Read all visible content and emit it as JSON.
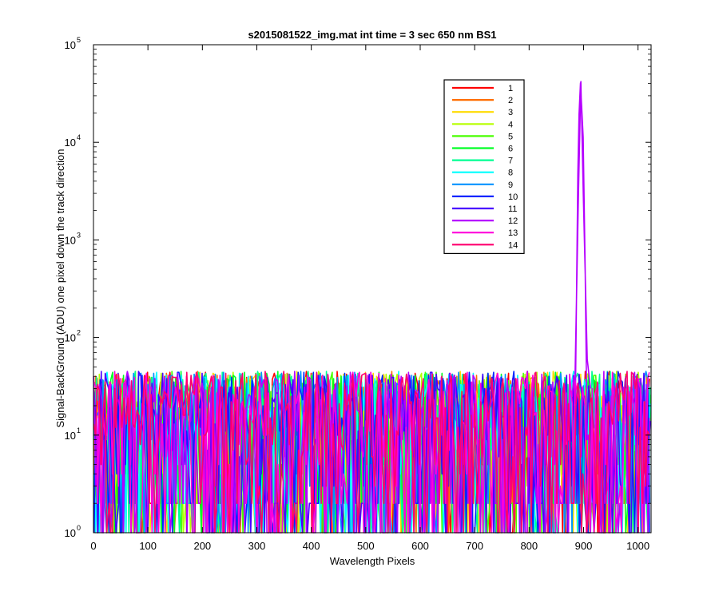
{
  "chart_data": {
    "type": "line",
    "title": "s2015081522_img.mat int time = 3 sec  650 nm BS1",
    "xlabel": "Wavelength Pixels",
    "ylabel": "Signal-BackGround (ADU) one pixel down the track direction",
    "xlim": [
      0,
      1024
    ],
    "ylim": [
      1,
      100000
    ],
    "yscale": "log",
    "grid": false,
    "legend_position": "top-right",
    "x_ticks": [
      0,
      100,
      200,
      300,
      400,
      500,
      600,
      700,
      800,
      900,
      1000
    ],
    "x_tick_labels": [
      "0",
      "100",
      "200",
      "300",
      "400",
      "500",
      "600",
      "700",
      "800",
      "900",
      "1000"
    ],
    "y_ticks": [
      1,
      10,
      100,
      1000,
      10000,
      100000
    ],
    "y_tick_bases": [
      "10",
      "10",
      "10",
      "10",
      "10",
      "10"
    ],
    "y_tick_exps": [
      "0",
      "1",
      "2",
      "3",
      "4",
      "5"
    ],
    "noise_floor": {
      "typical_min": 1,
      "typical_max": 45,
      "median": 10
    },
    "peak": {
      "series": "12",
      "x": 895,
      "y": 42000
    },
    "series": [
      {
        "name": "1",
        "color": "#ff0000"
      },
      {
        "name": "2",
        "color": "#ff6e00"
      },
      {
        "name": "3",
        "color": "#ffdb00"
      },
      {
        "name": "4",
        "color": "#b6ff00"
      },
      {
        "name": "5",
        "color": "#49ff00"
      },
      {
        "name": "6",
        "color": "#00ff25"
      },
      {
        "name": "7",
        "color": "#00ff92"
      },
      {
        "name": "8",
        "color": "#00ffff"
      },
      {
        "name": "9",
        "color": "#0092ff"
      },
      {
        "name": "10",
        "color": "#0025ff"
      },
      {
        "name": "11",
        "color": "#4900ff"
      },
      {
        "name": "12",
        "color": "#b600ff"
      },
      {
        "name": "13",
        "color": "#ff00db"
      },
      {
        "name": "14",
        "color": "#ff006e"
      }
    ]
  }
}
